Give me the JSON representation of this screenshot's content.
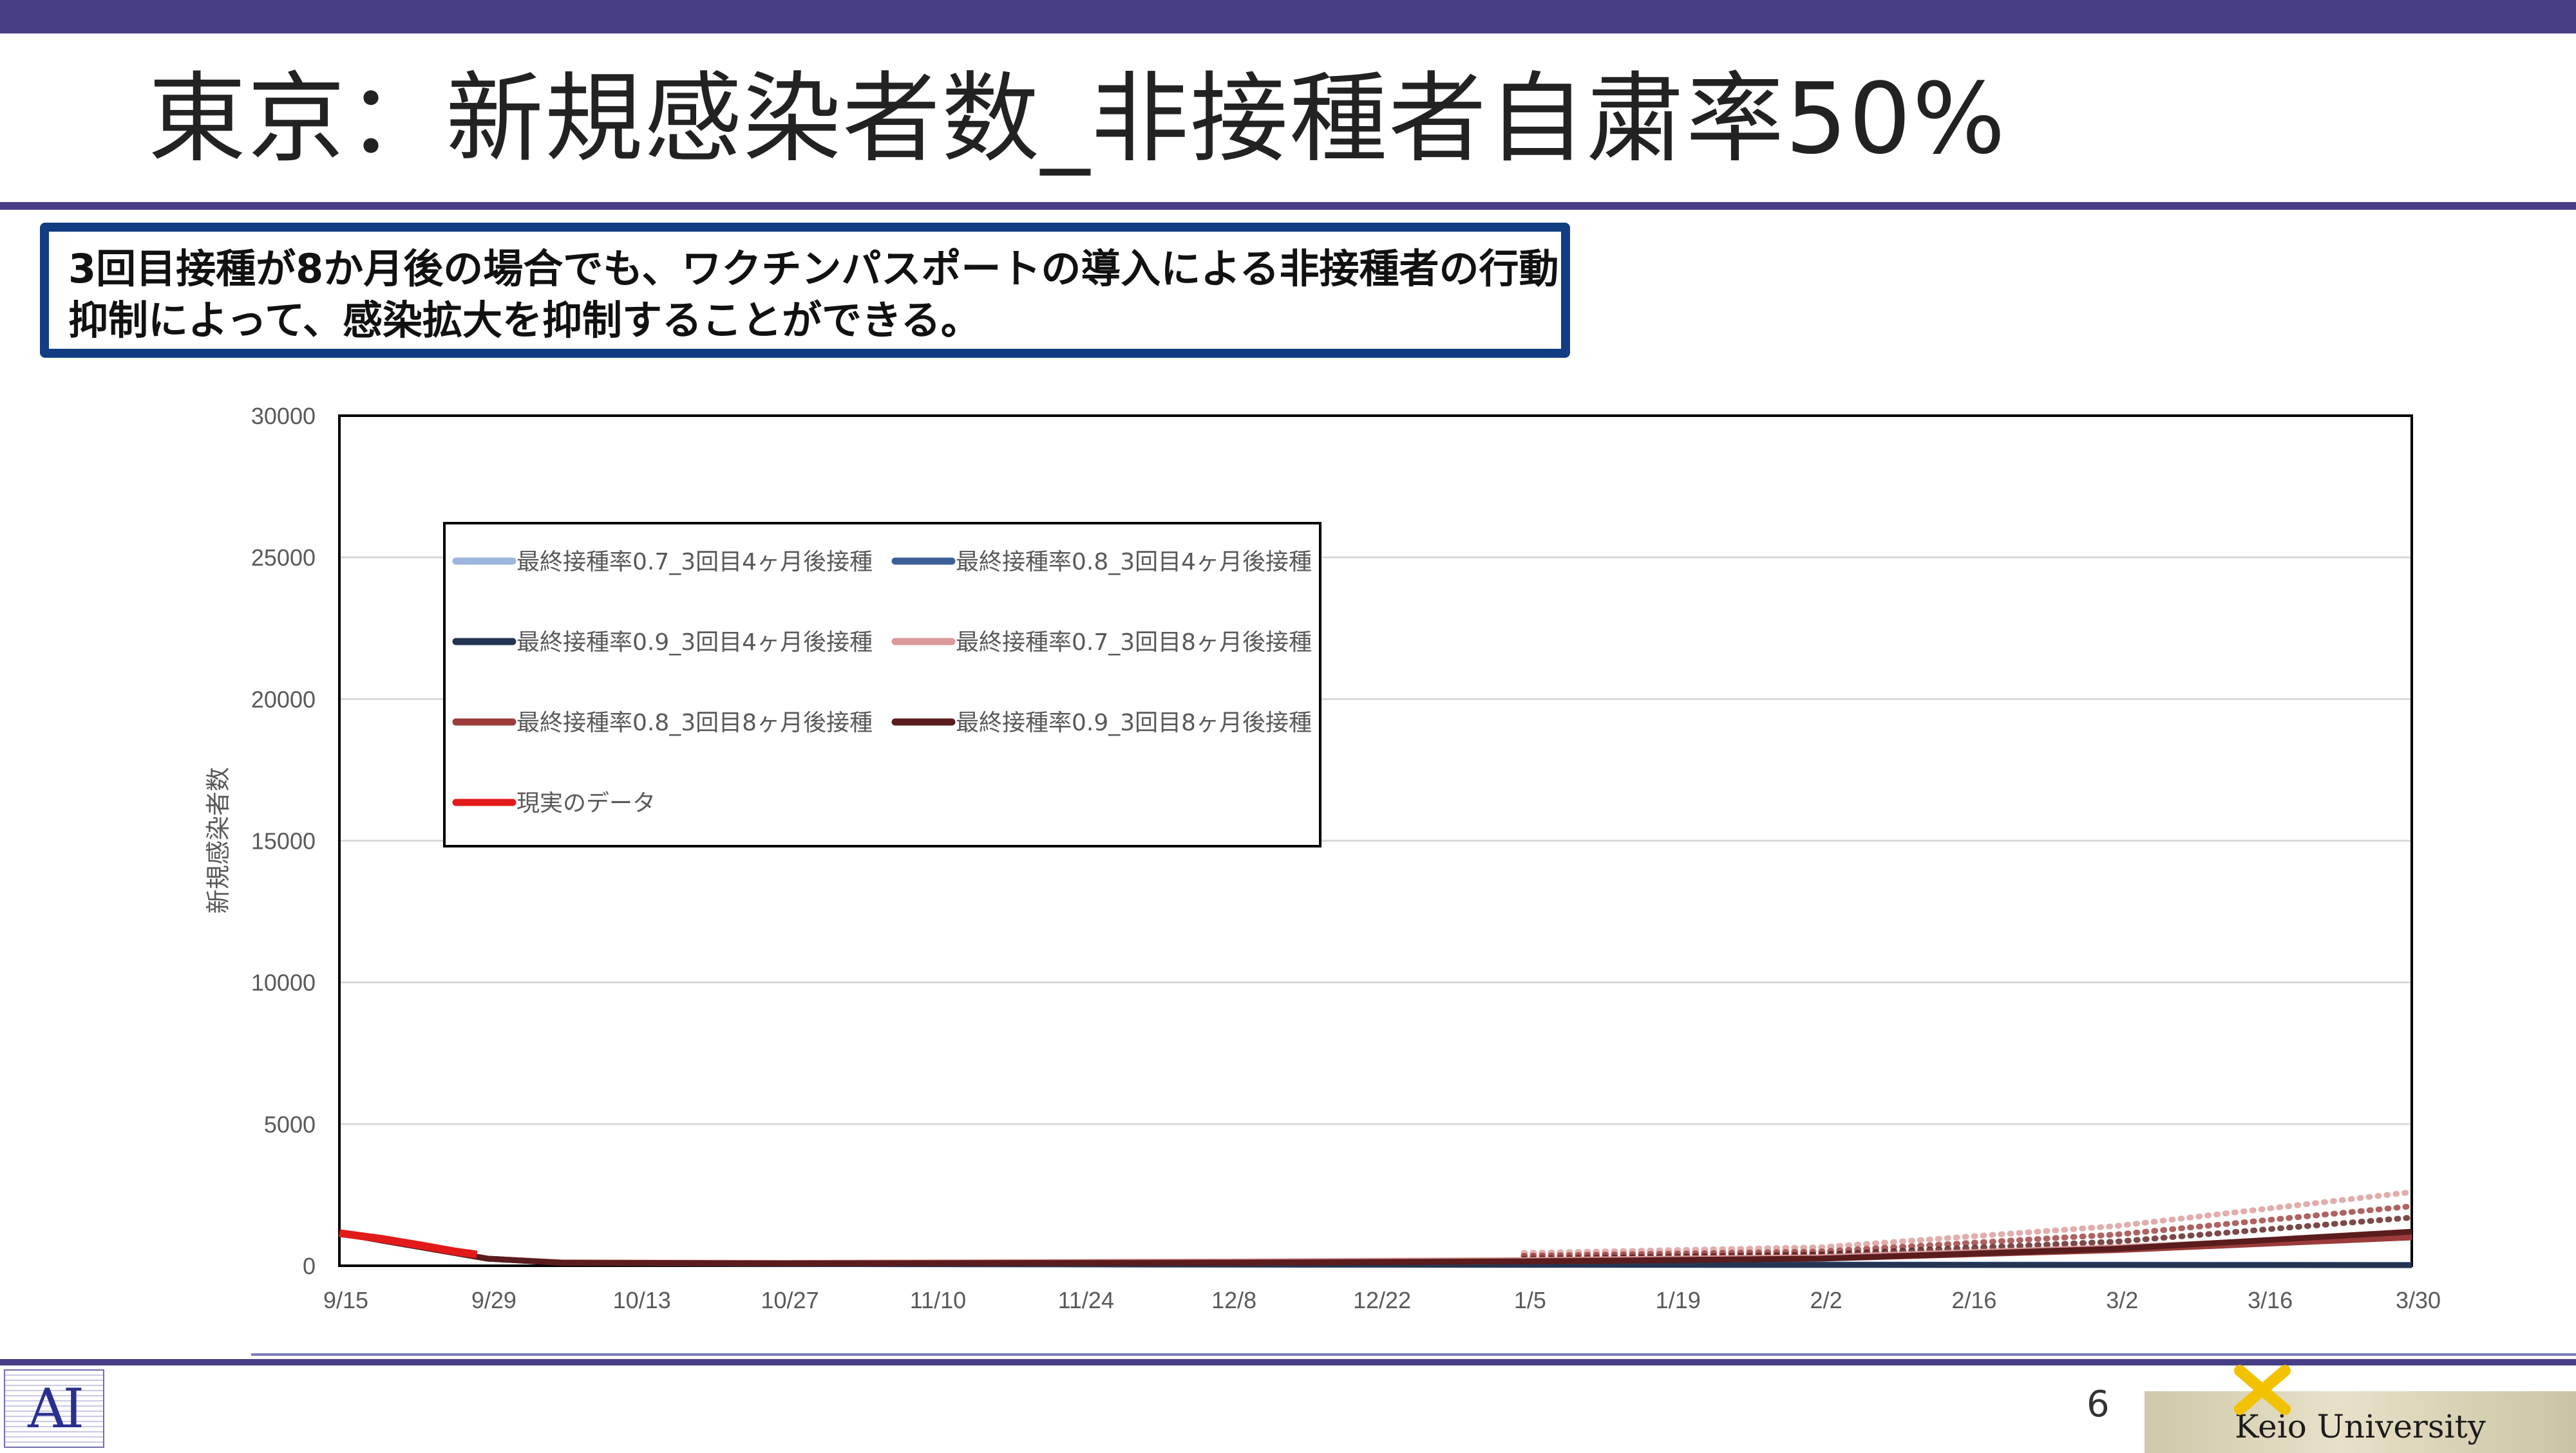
{
  "slide": {
    "title": "東京：新規感染者数_非接種者自粛率50%",
    "callout_line1": "3回目接種が8か月後の場合でも、ワクチンパスポートの導入による非接種者の行動",
    "callout_line2": "抑制によって、感染拡大を抑制することができる。",
    "page_number": "6",
    "footer_logo_left": "AI",
    "footer_logo_right": "Keio University",
    "colors": {
      "bar": "#463f86",
      "callout_border": "#123d82"
    }
  },
  "chart_data": {
    "type": "line",
    "ylabel": "新規感染者数",
    "ylim": [
      0,
      30000
    ],
    "y_ticks": [
      0,
      5000,
      10000,
      15000,
      20000,
      25000,
      30000
    ],
    "x_ticks": [
      "9/15",
      "9/29",
      "10/13",
      "10/27",
      "11/10",
      "11/24",
      "12/8",
      "12/22",
      "1/5",
      "1/19",
      "2/2",
      "2/16",
      "3/2",
      "3/16",
      "3/30"
    ],
    "x_unit": "days",
    "xlim": [
      0,
      196
    ],
    "legend_position": "upper-left",
    "series": [
      {
        "name": "最終接種率0.7_3回目4ヶ月後接種",
        "color": "#9db6dc",
        "style": "solid",
        "points": [
          [
            0,
            1150
          ],
          [
            14,
            250
          ],
          [
            21,
            120
          ],
          [
            42,
            80
          ],
          [
            84,
            60
          ],
          [
            126,
            50
          ],
          [
            168,
            40
          ],
          [
            196,
            30
          ]
        ]
      },
      {
        "name": "最終接種率0.8_3回目4ヶ月後接種",
        "color": "#3c5f96",
        "style": "solid",
        "points": [
          [
            0,
            1150
          ],
          [
            14,
            250
          ],
          [
            21,
            110
          ],
          [
            42,
            70
          ],
          [
            84,
            50
          ],
          [
            126,
            40
          ],
          [
            168,
            30
          ],
          [
            196,
            25
          ]
        ]
      },
      {
        "name": "最終接種率0.9_3回目4ヶ月後接種",
        "color": "#243553",
        "style": "solid",
        "points": [
          [
            0,
            1150
          ],
          [
            14,
            250
          ],
          [
            21,
            100
          ],
          [
            42,
            60
          ],
          [
            84,
            40
          ],
          [
            126,
            30
          ],
          [
            168,
            25
          ],
          [
            196,
            20
          ]
        ]
      },
      {
        "name": "最終接種率0.7_3回目8ヶ月後接種",
        "color": "#d99a99",
        "style": "solid",
        "points": [
          [
            0,
            1150
          ],
          [
            14,
            250
          ],
          [
            21,
            120
          ],
          [
            42,
            100
          ],
          [
            84,
            150
          ],
          [
            112,
            200
          ],
          [
            140,
            300
          ],
          [
            168,
            650
          ],
          [
            196,
            1100
          ]
        ]
      },
      {
        "name": "最終接種率0.8_3回目8ヶ月後接種",
        "color": "#9b3b3b",
        "style": "solid",
        "points": [
          [
            0,
            1150
          ],
          [
            14,
            250
          ],
          [
            21,
            110
          ],
          [
            42,
            90
          ],
          [
            84,
            120
          ],
          [
            112,
            160
          ],
          [
            140,
            250
          ],
          [
            168,
            550
          ],
          [
            196,
            1000
          ]
        ]
      },
      {
        "name": "最終接種率0.9_3回目8ヶ月後接種",
        "color": "#5a1c1c",
        "style": "solid",
        "points": [
          [
            0,
            1150
          ],
          [
            14,
            250
          ],
          [
            21,
            100
          ],
          [
            42,
            80
          ],
          [
            84,
            100
          ],
          [
            112,
            150
          ],
          [
            140,
            250
          ],
          [
            168,
            600
          ],
          [
            196,
            1200
          ]
        ]
      },
      {
        "name": "現実のデータ",
        "color": "#e31a1a",
        "style": "solid",
        "points": [
          [
            0,
            1150
          ],
          [
            4,
            950
          ],
          [
            8,
            700
          ],
          [
            11,
            500
          ],
          [
            13,
            400
          ]
        ]
      }
    ],
    "dotted_series": [
      {
        "color": "#d99a99",
        "points": [
          [
            112,
            450
          ],
          [
            140,
            650
          ],
          [
            168,
            1400
          ],
          [
            196,
            2600
          ]
        ]
      },
      {
        "color": "#9b3b3b",
        "points": [
          [
            112,
            350
          ],
          [
            140,
            500
          ],
          [
            168,
            1100
          ],
          [
            196,
            2100
          ]
        ]
      },
      {
        "color": "#5a1c1c",
        "points": [
          [
            112,
            250
          ],
          [
            140,
            400
          ],
          [
            168,
            850
          ],
          [
            196,
            1700
          ]
        ]
      }
    ]
  }
}
